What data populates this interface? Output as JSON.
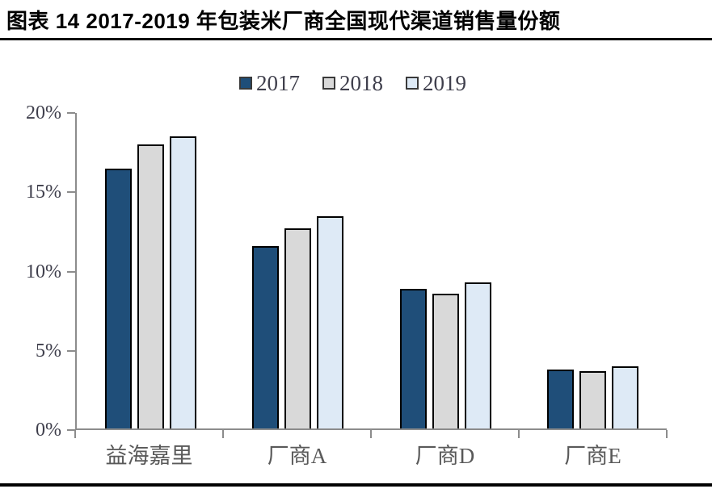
{
  "page": {
    "title": "图表 14 2017-2019 年包装米厂商全国现代渠道销售量份额"
  },
  "chart_data": {
    "type": "bar",
    "title": "图表 14 2017-2019 年包装米厂商全国现代渠道销售量份额",
    "categories": [
      "益海嘉里",
      "厂商A",
      "厂商D",
      "厂商E"
    ],
    "series": [
      {
        "name": "2017",
        "color": "#1F4E79",
        "values": [
          16.4,
          11.5,
          8.8,
          3.7
        ]
      },
      {
        "name": "2018",
        "color": "#D9D9D9",
        "values": [
          17.9,
          12.6,
          8.5,
          3.6
        ]
      },
      {
        "name": "2019",
        "color": "#DEEAF6",
        "values": [
          18.4,
          13.4,
          9.2,
          3.9
        ]
      }
    ],
    "xlabel": "",
    "ylabel": "",
    "ylim": [
      0,
      20
    ],
    "y_tick_labels": [
      "20%",
      "15%",
      "10%",
      "5%",
      "0%"
    ],
    "grid": false,
    "legend_position": "top"
  },
  "colors": {
    "axis": "#8c8c8c",
    "bar_border": "#000000",
    "tick_label": "#3f3f4c",
    "category_label": "#595959",
    "rule": "#000000"
  }
}
